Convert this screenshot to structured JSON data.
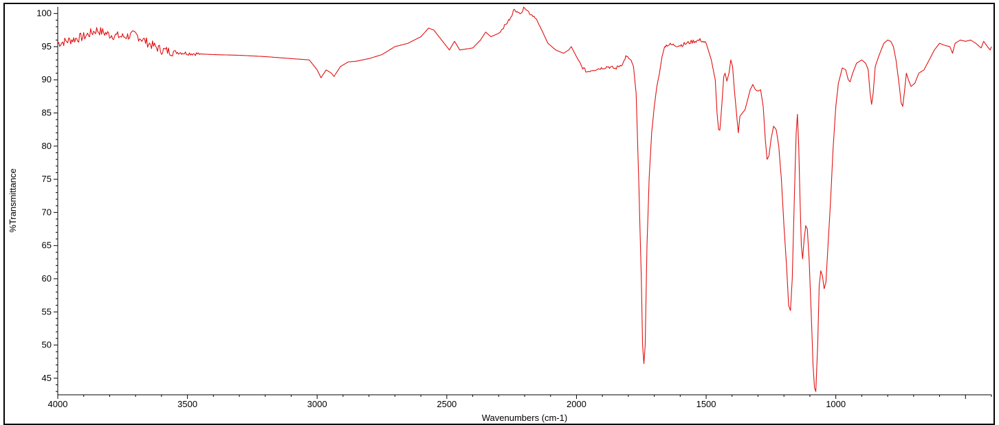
{
  "chart_data": {
    "type": "line",
    "xlabel": "Wavenumbers (cm-1)",
    "ylabel": "%Transmittance",
    "xlim": [
      4000,
      400
    ],
    "ylim": [
      42.5,
      101
    ],
    "x_reversed": true,
    "grid": false,
    "x_ticks": [
      4000,
      3500,
      3000,
      2500,
      2000,
      1500,
      1000
    ],
    "x_tick_labels": [
      "4000",
      "3500",
      "3000",
      "2500",
      "2000",
      "1500",
      "1000"
    ],
    "y_ticks": [
      45,
      50,
      55,
      60,
      65,
      70,
      75,
      80,
      85,
      90,
      95,
      100
    ],
    "y_tick_labels": [
      "45",
      "50",
      "55",
      "60",
      "65",
      "70",
      "75",
      "80",
      "85",
      "90",
      "95",
      "100"
    ],
    "series": [
      {
        "color": "#e01010",
        "points": [
          [
            4000,
            95.5
          ],
          [
            3950,
            96.0
          ],
          [
            3900,
            96.5
          ],
          [
            3850,
            97.5
          ],
          [
            3800,
            96.8
          ],
          [
            3750,
            96.5
          ],
          [
            3700,
            96.8
          ],
          [
            3650,
            95.5
          ],
          [
            3600,
            94.5
          ],
          [
            3550,
            94.2
          ],
          [
            3500,
            94.0
          ],
          [
            3450,
            93.9
          ],
          [
            3400,
            93.8
          ],
          [
            3300,
            93.7
          ],
          [
            3200,
            93.5
          ],
          [
            3100,
            93.2
          ],
          [
            3030,
            93.0
          ],
          [
            3000,
            91.5
          ],
          [
            2985,
            90.3
          ],
          [
            2965,
            91.5
          ],
          [
            2945,
            91.0
          ],
          [
            2935,
            90.5
          ],
          [
            2910,
            92.0
          ],
          [
            2880,
            92.7
          ],
          [
            2850,
            92.8
          ],
          [
            2800,
            93.2
          ],
          [
            2750,
            93.8
          ],
          [
            2700,
            95.0
          ],
          [
            2650,
            95.5
          ],
          [
            2600,
            96.5
          ],
          [
            2570,
            97.8
          ],
          [
            2550,
            97.5
          ],
          [
            2520,
            96.0
          ],
          [
            2490,
            94.5
          ],
          [
            2470,
            95.8
          ],
          [
            2450,
            94.5
          ],
          [
            2400,
            94.8
          ],
          [
            2370,
            96.0
          ],
          [
            2350,
            97.2
          ],
          [
            2330,
            96.5
          ],
          [
            2300,
            97.0
          ],
          [
            2270,
            98.5
          ],
          [
            2250,
            99.5
          ],
          [
            2240,
            100.8
          ],
          [
            2225,
            100.0
          ],
          [
            2210,
            100.3
          ],
          [
            2200,
            101.0
          ],
          [
            2180,
            100.0
          ],
          [
            2160,
            99.5
          ],
          [
            2140,
            98.0
          ],
          [
            2110,
            95.5
          ],
          [
            2080,
            94.5
          ],
          [
            2050,
            94.0
          ],
          [
            2030,
            94.5
          ],
          [
            2020,
            95.0
          ],
          [
            2000,
            93.5
          ],
          [
            1980,
            92.0
          ],
          [
            1960,
            91.2
          ],
          [
            1940,
            91.5
          ],
          [
            1900,
            91.8
          ],
          [
            1880,
            92.0
          ],
          [
            1850,
            91.7
          ],
          [
            1820,
            92.5
          ],
          [
            1810,
            93.5
          ],
          [
            1790,
            93.0
          ],
          [
            1780,
            92.0
          ],
          [
            1770,
            88.0
          ],
          [
            1760,
            75.0
          ],
          [
            1750,
            60.0
          ],
          [
            1745,
            50.0
          ],
          [
            1740,
            47.2
          ],
          [
            1735,
            50.0
          ],
          [
            1728,
            65.0
          ],
          [
            1720,
            75.0
          ],
          [
            1710,
            82.0
          ],
          [
            1700,
            86.0
          ],
          [
            1690,
            89.0
          ],
          [
            1680,
            91.0
          ],
          [
            1670,
            93.5
          ],
          [
            1660,
            95.0
          ],
          [
            1650,
            95.3
          ],
          [
            1600,
            95.2
          ],
          [
            1550,
            95.8
          ],
          [
            1520,
            96.0
          ],
          [
            1500,
            95.5
          ],
          [
            1480,
            93.0
          ],
          [
            1465,
            90.0
          ],
          [
            1458,
            85.0
          ],
          [
            1452,
            82.5
          ],
          [
            1447,
            82.4
          ],
          [
            1440,
            86.0
          ],
          [
            1432,
            90.5
          ],
          [
            1427,
            91.0
          ],
          [
            1420,
            89.8
          ],
          [
            1412,
            91.0
          ],
          [
            1405,
            93.0
          ],
          [
            1398,
            92.0
          ],
          [
            1390,
            88.0
          ],
          [
            1382,
            84.5
          ],
          [
            1376,
            82.0
          ],
          [
            1370,
            84.5
          ],
          [
            1360,
            85.0
          ],
          [
            1350,
            85.5
          ],
          [
            1340,
            87.0
          ],
          [
            1330,
            88.5
          ],
          [
            1320,
            89.3
          ],
          [
            1310,
            88.5
          ],
          [
            1300,
            88.3
          ],
          [
            1290,
            88.5
          ],
          [
            1280,
            86.0
          ],
          [
            1272,
            81.0
          ],
          [
            1265,
            78.0
          ],
          [
            1258,
            78.5
          ],
          [
            1250,
            81.0
          ],
          [
            1240,
            83.0
          ],
          [
            1230,
            82.5
          ],
          [
            1220,
            80.0
          ],
          [
            1210,
            75.0
          ],
          [
            1200,
            68.0
          ],
          [
            1190,
            62.0
          ],
          [
            1182,
            56.0
          ],
          [
            1175,
            55.2
          ],
          [
            1168,
            60.0
          ],
          [
            1160,
            72.0
          ],
          [
            1153,
            82.0
          ],
          [
            1148,
            84.8
          ],
          [
            1143,
            80.0
          ],
          [
            1138,
            72.0
          ],
          [
            1133,
            65.0
          ],
          [
            1128,
            63.0
          ],
          [
            1122,
            66.0
          ],
          [
            1116,
            68.0
          ],
          [
            1110,
            67.5
          ],
          [
            1103,
            63.0
          ],
          [
            1095,
            55.0
          ],
          [
            1088,
            47.0
          ],
          [
            1082,
            43.5
          ],
          [
            1077,
            43.0
          ],
          [
            1070,
            50.0
          ],
          [
            1064,
            59.0
          ],
          [
            1058,
            61.2
          ],
          [
            1052,
            60.5
          ],
          [
            1045,
            58.5
          ],
          [
            1038,
            59.5
          ],
          [
            1030,
            65.0
          ],
          [
            1020,
            72.0
          ],
          [
            1010,
            80.0
          ],
          [
            1000,
            86.0
          ],
          [
            990,
            89.5
          ],
          [
            975,
            91.8
          ],
          [
            962,
            91.5
          ],
          [
            952,
            90.0
          ],
          [
            945,
            89.7
          ],
          [
            935,
            91.0
          ],
          [
            920,
            92.5
          ],
          [
            900,
            93.0
          ],
          [
            885,
            92.5
          ],
          [
            875,
            91.5
          ],
          [
            868,
            88.0
          ],
          [
            862,
            86.3
          ],
          [
            856,
            88.0
          ],
          [
            848,
            92.0
          ],
          [
            835,
            93.5
          ],
          [
            815,
            95.5
          ],
          [
            800,
            96.0
          ],
          [
            788,
            95.8
          ],
          [
            778,
            95.0
          ],
          [
            768,
            93.0
          ],
          [
            755,
            89.0
          ],
          [
            748,
            86.5
          ],
          [
            742,
            86.0
          ],
          [
            736,
            88.0
          ],
          [
            728,
            91.0
          ],
          [
            720,
            90.0
          ],
          [
            710,
            89.0
          ],
          [
            695,
            89.5
          ],
          [
            680,
            91.0
          ],
          [
            660,
            91.5
          ],
          [
            640,
            93.0
          ],
          [
            620,
            94.5
          ],
          [
            600,
            95.5
          ],
          [
            580,
            95.2
          ],
          [
            560,
            95.0
          ],
          [
            550,
            94.0
          ],
          [
            540,
            95.5
          ],
          [
            520,
            96.0
          ],
          [
            500,
            95.8
          ],
          [
            480,
            96.0
          ],
          [
            460,
            95.5
          ],
          [
            440,
            94.8
          ],
          [
            430,
            95.8
          ],
          [
            415,
            95.0
          ],
          [
            405,
            94.5
          ],
          [
            400,
            95.0
          ]
        ]
      }
    ]
  }
}
